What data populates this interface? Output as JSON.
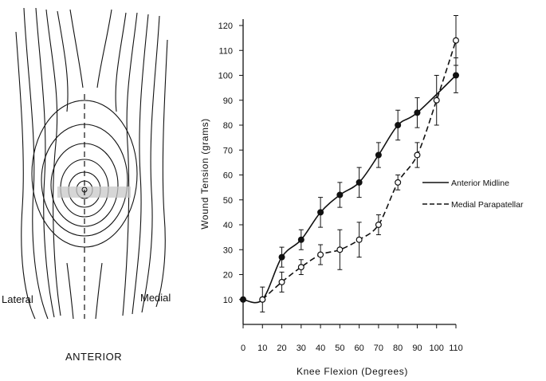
{
  "diagram": {
    "lateral_label": "Lateral",
    "medial_label": "Medial",
    "view_label": "ANTERIOR"
  },
  "chart_data": {
    "type": "line",
    "title": "",
    "xlabel": "Knee Flexion (Degrees)",
    "ylabel": "Wound Tension (grams)",
    "xlim": [
      0,
      110
    ],
    "ylim": [
      0,
      120
    ],
    "xticks": [
      0,
      10,
      20,
      30,
      40,
      50,
      60,
      70,
      80,
      90,
      100,
      110
    ],
    "yticks": [
      10,
      20,
      30,
      40,
      50,
      60,
      70,
      80,
      90,
      100,
      110,
      120
    ],
    "grid": false,
    "legend_position": "right",
    "series": [
      {
        "name": "Anterior Midline",
        "line_style": "solid",
        "marker": "filled-circle",
        "points": [
          {
            "x": 0,
            "y": 10,
            "err": 0
          },
          {
            "x": 10,
            "y": 10,
            "err": 0
          },
          {
            "x": 20,
            "y": 27,
            "err": 4
          },
          {
            "x": 30,
            "y": 34,
            "err": 4
          },
          {
            "x": 40,
            "y": 45,
            "err": 6
          },
          {
            "x": 50,
            "y": 52,
            "err": 5
          },
          {
            "x": 60,
            "y": 57,
            "err": 6
          },
          {
            "x": 70,
            "y": 68,
            "err": 5
          },
          {
            "x": 80,
            "y": 80,
            "err": 6
          },
          {
            "x": 90,
            "y": 85,
            "err": 6
          },
          {
            "x": 110,
            "y": 100,
            "err": 7
          }
        ]
      },
      {
        "name": "Medial Parapatellar",
        "line_style": "dashed",
        "marker": "open-circle",
        "points": [
          {
            "x": 10,
            "y": 10,
            "err": 5
          },
          {
            "x": 20,
            "y": 17,
            "err": 4
          },
          {
            "x": 30,
            "y": 23,
            "err": 3
          },
          {
            "x": 40,
            "y": 28,
            "err": 4
          },
          {
            "x": 50,
            "y": 30,
            "err": 8
          },
          {
            "x": 60,
            "y": 34,
            "err": 7
          },
          {
            "x": 70,
            "y": 40,
            "err": 4
          },
          {
            "x": 80,
            "y": 57,
            "err": 3
          },
          {
            "x": 90,
            "y": 68,
            "err": 5
          },
          {
            "x": 100,
            "y": 90,
            "err": 10
          },
          {
            "x": 110,
            "y": 114,
            "err": 10
          }
        ]
      }
    ]
  }
}
